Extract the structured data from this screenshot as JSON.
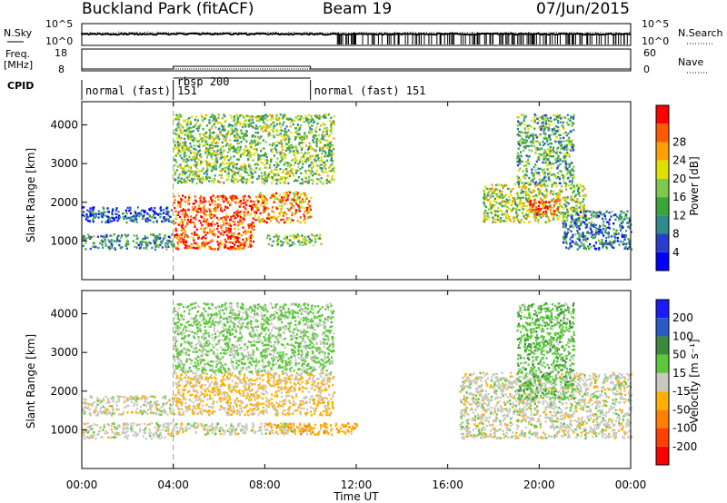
{
  "header": {
    "station": "Buckland Park (fitACF)",
    "beam": "Beam 19",
    "date": "07/Jun/2015"
  },
  "aux_panels": {
    "nsky_label": "N.Sky",
    "nsky_ticks": [
      "10^5",
      "10^0"
    ],
    "nsearch_label": "N.Search",
    "nsearch_ticks": [
      "10^5",
      "10^0"
    ],
    "freq_label": "Freq.",
    "freq_unit": "[MHz]",
    "freq_ticks": [
      "18",
      "8"
    ],
    "nave_label": "Nave",
    "nave_ticks": [
      "60",
      "0"
    ],
    "cpid_label": "CPID",
    "modes": [
      {
        "name": "normal (fast) 151",
        "start_h": 0.0,
        "end_h": 4.0
      },
      {
        "name": "rbsp 200",
        "start_h": 4.0,
        "end_h": 10.0
      },
      {
        "name": "normal (fast) 151",
        "start_h": 10.0,
        "end_h": 24.0
      }
    ]
  },
  "power_panel": {
    "ylabel": "Slant Range [km]",
    "yticks": [
      "1000",
      "2000",
      "3000",
      "4000"
    ],
    "colorbar_label": "Power [dB]",
    "colorbar_ticks": [
      "4",
      "8",
      "12",
      "16",
      "20",
      "24",
      "28"
    ],
    "colors": [
      "#0000ff",
      "#2a3ccc",
      "#2f8a8a",
      "#3aa63a",
      "#7fc84a",
      "#e0e000",
      "#ffa000",
      "#ff5a00",
      "#ff0000"
    ]
  },
  "velocity_panel": {
    "ylabel": "Slant Range [km]",
    "yticks": [
      "1000",
      "2000",
      "3000",
      "4000"
    ],
    "colorbar_label": "Velocity [m s⁻¹]",
    "colorbar_ticks": [
      "200",
      "100",
      "50",
      "15",
      "-15",
      "-50",
      "-100",
      "-200"
    ],
    "colors": [
      "#1a1aff",
      "#2a5ac8",
      "#3a8a3a",
      "#5ac83a",
      "#c8c8c0",
      "#ffb000",
      "#ff8000",
      "#ff4000",
      "#ff0000"
    ]
  },
  "x_axis": {
    "label": "Time UT",
    "ticks": [
      "00:00",
      "04:00",
      "08:00",
      "12:00",
      "16:00",
      "20:00",
      "00:00"
    ]
  },
  "chart_data": {
    "type": "heatmap",
    "title": "Buckland Park (fitACF)",
    "x_unit": "hours UT",
    "xlim": [
      0,
      24
    ],
    "ylim": [
      0,
      4600
    ],
    "y_unit": "km",
    "panels": [
      {
        "name": "Power",
        "quantity_range": [
          0,
          30
        ],
        "echo_regions": [
          {
            "t_start": 0.0,
            "t_end": 4.0,
            "range_low": 800,
            "range_high": 1200,
            "value": 10
          },
          {
            "t_start": 0.0,
            "t_end": 4.0,
            "range_low": 1500,
            "range_high": 1900,
            "value": 6
          },
          {
            "t_start": 4.0,
            "t_end": 7.5,
            "range_low": 800,
            "range_high": 2200,
            "value": 26
          },
          {
            "t_start": 7.5,
            "t_end": 10.0,
            "range_low": 1500,
            "range_high": 2300,
            "value": 22
          },
          {
            "t_start": 8.0,
            "t_end": 10.5,
            "range_low": 900,
            "range_high": 1200,
            "value": 14
          },
          {
            "t_start": 4.0,
            "t_end": 11.0,
            "range_low": 2500,
            "range_high": 4300,
            "value": 14
          },
          {
            "t_start": 17.5,
            "t_end": 22.0,
            "range_low": 1500,
            "range_high": 2500,
            "value": 16
          },
          {
            "t_start": 19.5,
            "t_end": 21.0,
            "range_low": 1700,
            "range_high": 2100,
            "value": 26
          },
          {
            "t_start": 21.0,
            "t_end": 24.0,
            "range_low": 800,
            "range_high": 1800,
            "value": 8
          },
          {
            "t_start": 19.0,
            "t_end": 21.5,
            "range_low": 2500,
            "range_high": 4300,
            "value": 12
          }
        ]
      },
      {
        "name": "Velocity",
        "quantity_range": [
          -250,
          250
        ],
        "echo_regions": [
          {
            "t_start": 0.0,
            "t_end": 4.0,
            "range_low": 800,
            "range_high": 1200,
            "value": 0
          },
          {
            "t_start": 0.0,
            "t_end": 4.0,
            "range_low": 1400,
            "range_high": 1900,
            "value": 0
          },
          {
            "t_start": 4.0,
            "t_end": 10.0,
            "range_low": 900,
            "range_high": 1200,
            "value": 0
          },
          {
            "t_start": 4.0,
            "t_end": 11.0,
            "range_low": 1400,
            "range_high": 2500,
            "value": -30
          },
          {
            "t_start": 4.0,
            "t_end": 11.0,
            "range_low": 2500,
            "range_high": 4300,
            "value": 40
          },
          {
            "t_start": 8.0,
            "t_end": 12.0,
            "range_low": 900,
            "range_high": 1200,
            "value": -60
          },
          {
            "t_start": 16.5,
            "t_end": 24.0,
            "range_low": 800,
            "range_high": 2500,
            "value": 0
          },
          {
            "t_start": 19.0,
            "t_end": 21.5,
            "range_low": 1800,
            "range_high": 4300,
            "value": 60
          }
        ]
      }
    ]
  }
}
